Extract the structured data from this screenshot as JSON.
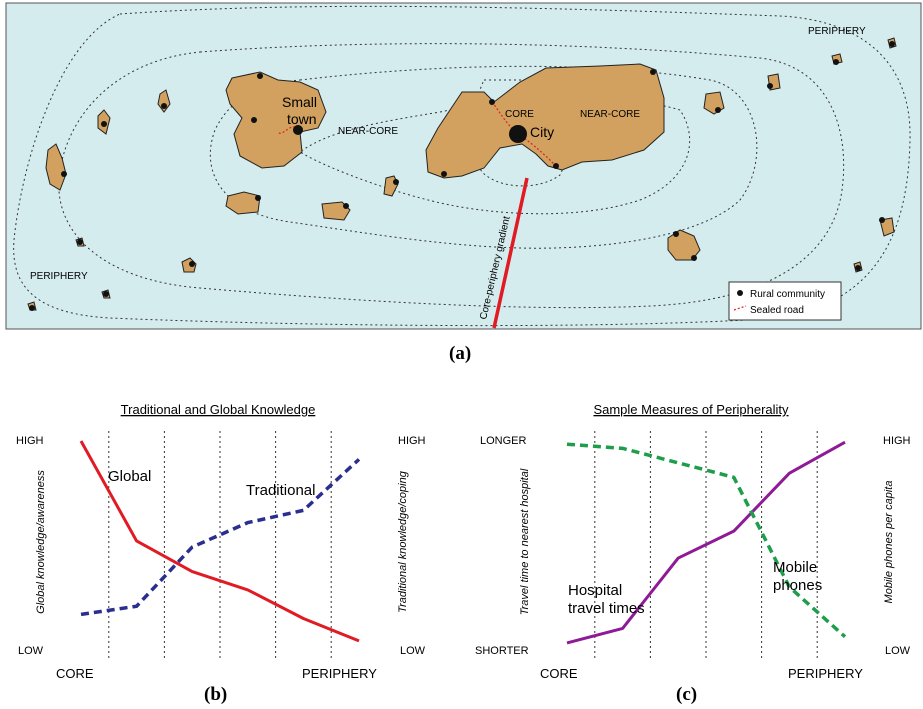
{
  "map": {
    "sea_color": "#d5ecee",
    "land_color": "#d2a15f",
    "road_color": "#e02020",
    "gradient_color": "#e01b24",
    "labels": {
      "periphery_top": "PERIPHERY",
      "periphery_left": "PERIPHERY",
      "near_core_left": "NEAR-CORE",
      "near_core_right": "NEAR-CORE",
      "core": "CORE",
      "city": "City",
      "small_town_line1": "Small",
      "small_town_line2": "town",
      "gradient": "Core-periphery gradient"
    },
    "legend": {
      "rural": "Rural community",
      "road": "Sealed road"
    },
    "panel_label": "(a)"
  },
  "chart_b": {
    "panel_label": "(b)",
    "chart_data": {
      "type": "line",
      "title": "Traditional and Global Knowledge",
      "xlabel_left": "CORE",
      "xlabel_right": "PERIPHERY",
      "ylabel_left": "Global knowledge/awareness",
      "ylabel_right": "Traditional knowledge/coping",
      "y_left_high": "HIGH",
      "y_left_low": "LOW",
      "y_right_high": "HIGH",
      "y_right_low": "LOW",
      "x": [
        0,
        1,
        2,
        3,
        4,
        5
      ],
      "ylim": [
        0,
        100
      ],
      "series": [
        {
          "name": "Global",
          "color": "#e01b24",
          "dashed": false,
          "values": [
            100,
            51,
            36,
            27,
            13,
            2
          ]
        },
        {
          "name": "Traditional",
          "color": "#2a2e8f",
          "dashed": true,
          "values": [
            15,
            19,
            48,
            60,
            66,
            91
          ]
        }
      ]
    }
  },
  "chart_c": {
    "panel_label": "(c)",
    "chart_data": {
      "type": "line",
      "title": "Sample Measures of Peripherality",
      "xlabel_left": "CORE",
      "xlabel_right": "PERIPHERY",
      "ylabel_left": "Travel time to nearest hospital",
      "ylabel_right": "Mobile phones per capita",
      "y_left_high": "LONGER",
      "y_left_low": "SHORTER",
      "y_right_high": "HIGH",
      "y_right_low": "LOW",
      "x": [
        0,
        1,
        2,
        3,
        4,
        5
      ],
      "ylim": [
        0,
        100
      ],
      "series": [
        {
          "name": "Hospital travel times",
          "label_lines": [
            "Hospital",
            "travel times"
          ],
          "color": "#8e1a96",
          "dashed": false,
          "values": [
            1,
            8,
            42,
            55,
            83,
            98
          ]
        },
        {
          "name": "Mobile phones",
          "label_lines": [
            "Mobile",
            "phones"
          ],
          "color": "#1e9e4a",
          "dashed": true,
          "values": [
            97,
            95,
            88,
            81,
            28,
            4
          ]
        }
      ]
    }
  }
}
